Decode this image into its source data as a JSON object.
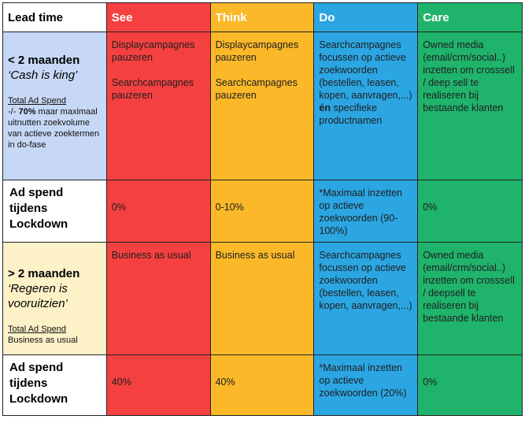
{
  "headers": {
    "lead": "Lead time",
    "see": "See",
    "think": "Think",
    "do": "Do",
    "care": "Care"
  },
  "row1": {
    "title": "< 2 maanden",
    "subtitle": "‘Cash is king’",
    "spend_label": "Total Ad Spend",
    "spend_pre": "-/- ",
    "spend_bold": "70%",
    "spend_post": " maar maximaal uitnutten zoekvolume van actieve zoektermen in do-fase",
    "see_1": "Displaycampagnes pauzeren",
    "see_2": "Searchcampagnes pauzeren",
    "think_1": "Displaycampagnes pauzeren",
    "think_2": "Searchcampagnes pauzeren",
    "do_pre": "Searchcampagnes focussen op actieve zoekwoorden (bestellen, leasen, kopen, aanvragen,...) ",
    "do_bold": "én",
    "do_post": " specifieke productnamen",
    "care": "Owned media (email/crm/social..) inzetten om crosssell / deep sell te realiseren bij bestaande klanten"
  },
  "row2": {
    "label": "Ad spend tijdens Lockdown",
    "see": "0%",
    "think": "0-10%",
    "do": "*Maximaal inzetten op actieve zoekwoorden (90-100%)",
    "care": "0%"
  },
  "row3": {
    "title": "> 2 maanden",
    "subtitle": "‘Regeren is vooruitzien’",
    "spend_label": "Total Ad Spend",
    "spend_text": "Business as usual",
    "see": "Business as usual",
    "think": "Business as usual",
    "do": "Searchcampagnes focussen op actieve zoekwoorden (bestellen, leasen, kopen, aanvragen,...)",
    "care": "Owned media (email/crm/social..) inzetten om crosssell / deepsell te realiseren bij bestaande klanten"
  },
  "row4": {
    "label": "Ad spend tijdens Lockdown",
    "see": "40%",
    "think": "40%",
    "do": "*Maximaal inzetten op actieve zoekwoorden (20%)",
    "care": "0%"
  }
}
